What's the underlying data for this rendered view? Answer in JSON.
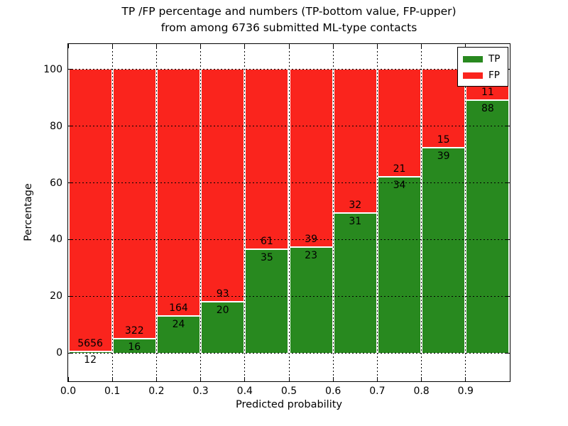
{
  "chart_data": {
    "type": "bar",
    "stacked": true,
    "normalized_to_percent": true,
    "title_line1": "TP /FP percentage and numbers (TP-bottom value, FP-upper)",
    "title_line2": "from among 6736 submitted ML-type contacts",
    "xlabel": "Predicted probability",
    "ylabel": "Percentage",
    "categories": [
      "0.0-0.1",
      "0.1-0.2",
      "0.2-0.3",
      "0.3-0.4",
      "0.4-0.5",
      "0.5-0.6",
      "0.6-0.7",
      "0.7-0.8",
      "0.8-0.9",
      "0.9-1.0"
    ],
    "series": [
      {
        "name": "TP",
        "color": "#28891f",
        "values": [
          12,
          16,
          24,
          20,
          35,
          23,
          31,
          34,
          39,
          88
        ]
      },
      {
        "name": "FP",
        "color": "#fa241d",
        "values": [
          5656,
          322,
          164,
          93,
          61,
          39,
          32,
          21,
          15,
          11
        ]
      }
    ],
    "tp_percent_of_bin": [
      0.21,
      4.73,
      12.77,
      17.7,
      36.46,
      37.1,
      49.21,
      61.82,
      72.22,
      88.89
    ],
    "xlim": [
      0.0,
      1.0
    ],
    "ylim": [
      -10,
      109
    ],
    "x_tick_labels": [
      "0.0",
      "0.1",
      "0.2",
      "0.3",
      "0.4",
      "0.5",
      "0.6",
      "0.7",
      "0.8",
      "0.9"
    ],
    "y_ticks": [
      0,
      20,
      40,
      60,
      80,
      100
    ],
    "grid": "dotted",
    "legend": {
      "position": "upper right",
      "entries": [
        {
          "label": "TP",
          "color": "#28891f"
        },
        {
          "label": "FP",
          "color": "#fa241d"
        }
      ]
    }
  }
}
